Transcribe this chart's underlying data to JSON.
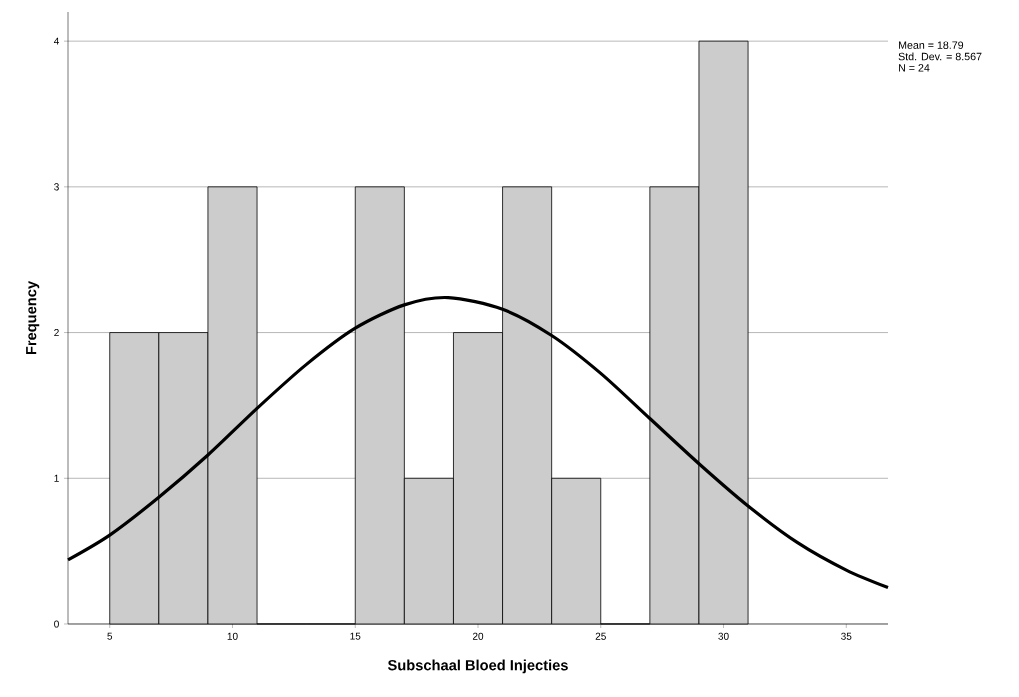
{
  "chart_data": {
    "type": "histogram",
    "xlabel": "Subschaal Bloed Injecties",
    "ylabel": "Frequency",
    "series": [
      {
        "color": "#cccccc",
        "bins": [
          5,
          7,
          9,
          11,
          13,
          15,
          17,
          19,
          21,
          23,
          25,
          27,
          29,
          31
        ],
        "values": [
          2,
          2,
          3,
          0,
          0,
          3,
          1,
          2,
          3,
          1,
          0,
          3,
          4
        ]
      },
      {
        "type": "line",
        "color": "#000000",
        "x": [
          3.3,
          5,
          7,
          9,
          11,
          13,
          15,
          17,
          18.79,
          21,
          23,
          25,
          27,
          29,
          31,
          33,
          35,
          36.7
        ],
        "values": [
          0.44,
          0.61,
          0.87,
          1.16,
          1.48,
          1.78,
          2.03,
          2.19,
          2.24,
          2.16,
          1.98,
          1.72,
          1.41,
          1.1,
          0.81,
          0.56,
          0.37,
          0.25
        ]
      }
    ],
    "xlim": [
      3.3,
      36.7
    ],
    "ylim": [
      0,
      4.2
    ],
    "xticks": [
      5,
      10,
      15,
      20,
      25,
      30,
      35
    ],
    "yticks": [
      0,
      1,
      2,
      3,
      4
    ],
    "grid": "y",
    "marker": "none",
    "line_style": "solid",
    "annotations": [
      "Mean = 18.79",
      "Std. Dev. = 8.567",
      "N = 24"
    ]
  }
}
